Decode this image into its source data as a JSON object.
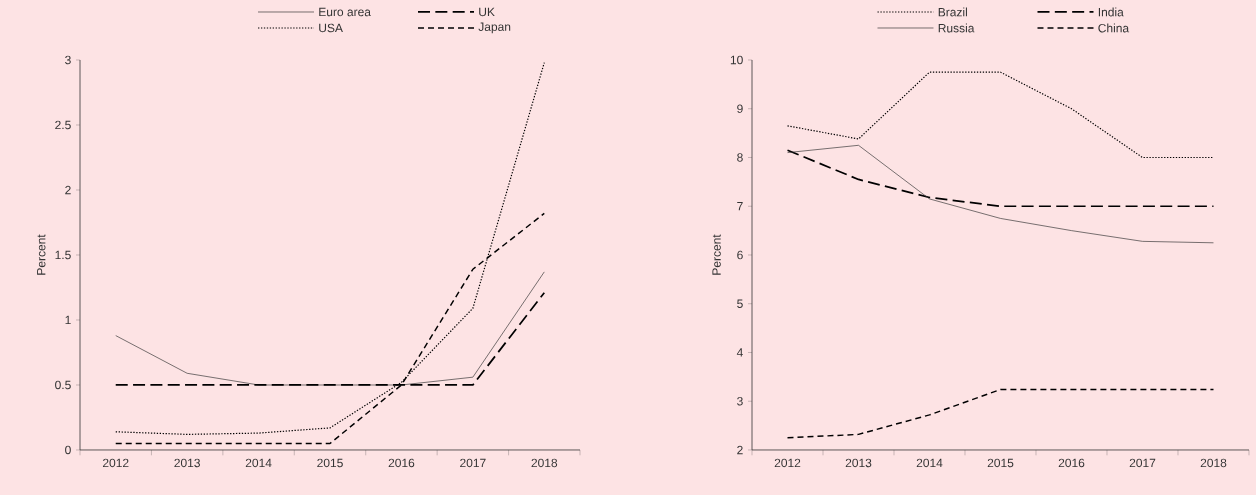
{
  "chart_data": [
    {
      "type": "line",
      "ylabel": "Percent",
      "legend": "top",
      "categories": [
        "2012",
        "2013",
        "2014",
        "2015",
        "2016",
        "2017",
        "2018"
      ],
      "ylim": [
        0,
        3
      ],
      "yticks": [
        0,
        0.5,
        1,
        1.5,
        2,
        2.5,
        3
      ],
      "series": [
        {
          "name": "Euro area",
          "color": "#333333",
          "line_style": "solid",
          "values": [
            0.88,
            0.59,
            0.5,
            0.5,
            0.5,
            0.56,
            1.37
          ]
        },
        {
          "name": "UK",
          "color": "#000000",
          "line_style": "dashed",
          "values": [
            0.5,
            0.5,
            0.5,
            0.5,
            0.5,
            0.5,
            1.21
          ]
        },
        {
          "name": "USA",
          "color": "#000000",
          "line_style": "dotted",
          "values": [
            0.14,
            0.12,
            0.13,
            0.17,
            0.52,
            1.09,
            2.98
          ]
        },
        {
          "name": "Japan",
          "color": "#000000",
          "line_style": "dashed",
          "values": [
            0.05,
            0.05,
            0.05,
            0.05,
            0.5,
            1.39,
            1.82
          ]
        }
      ]
    },
    {
      "type": "line",
      "ylabel": "Percent",
      "legend": "top",
      "categories": [
        "2012",
        "2013",
        "2014",
        "2015",
        "2016",
        "2017",
        "2018"
      ],
      "ylim": [
        2,
        10
      ],
      "yticks": [
        2,
        3,
        4,
        5,
        6,
        7,
        8,
        9,
        10
      ],
      "series": [
        {
          "name": "Brazil",
          "color": "#000000",
          "line_style": "dotted",
          "values": [
            8.65,
            8.38,
            9.75,
            9.75,
            9.0,
            8.0,
            8.0
          ]
        },
        {
          "name": "India",
          "color": "#000000",
          "line_style": "dashed",
          "values": [
            8.15,
            7.55,
            7.18,
            7.0,
            7.0,
            7.0,
            7.0
          ]
        },
        {
          "name": "Russia",
          "color": "#333333",
          "line_style": "solid",
          "values": [
            8.1,
            8.25,
            7.15,
            6.75,
            6.5,
            6.28,
            6.25
          ]
        },
        {
          "name": "China",
          "color": "#000000",
          "line_style": "dashed",
          "values": [
            2.25,
            2.32,
            2.72,
            3.24,
            3.24,
            3.24,
            3.24
          ]
        }
      ]
    }
  ]
}
